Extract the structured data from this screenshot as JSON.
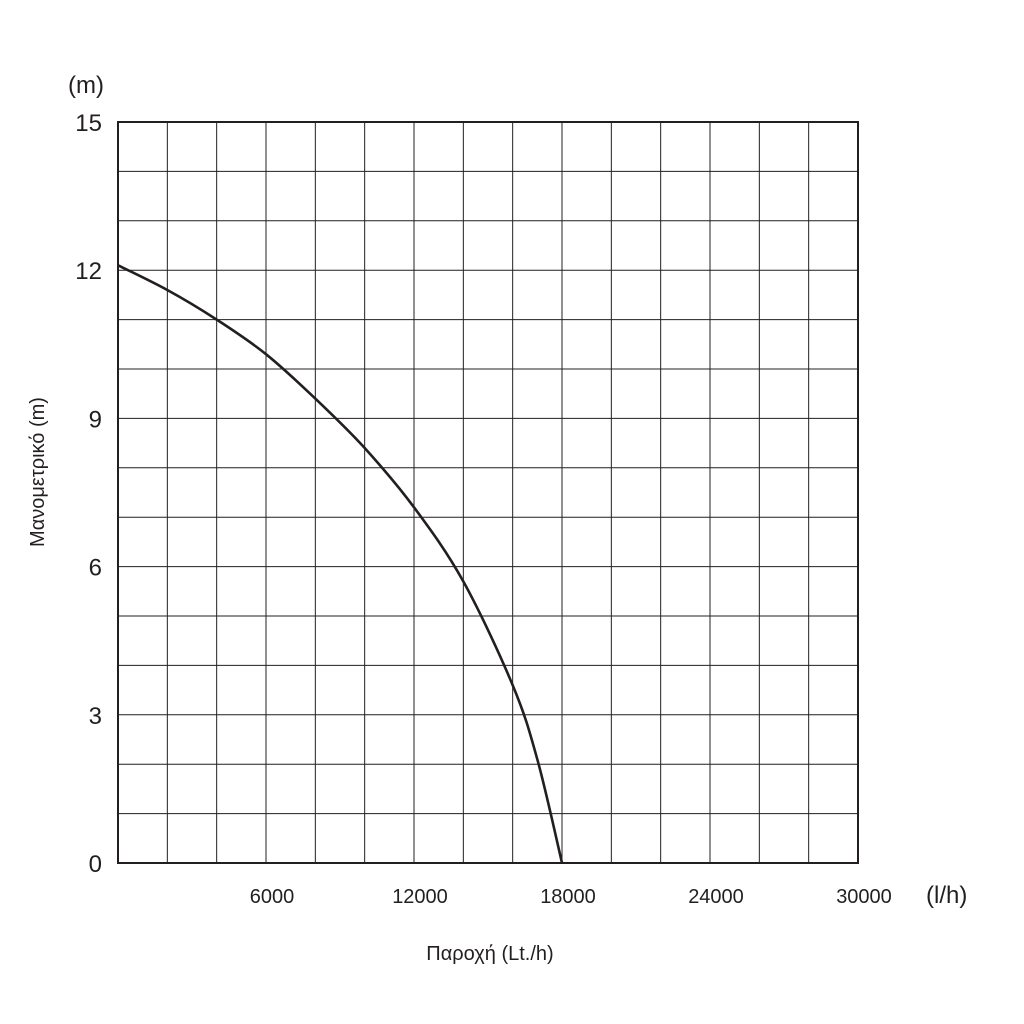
{
  "chart_data": {
    "type": "line",
    "title": "",
    "xlabel": "Παροχή (Lt./h)",
    "ylabel": "Μανομετρικό (m)",
    "x_unit": "(l/h)",
    "y_unit": "(m)",
    "xlim": [
      0,
      30000
    ],
    "ylim": [
      0,
      15
    ],
    "x_ticks": [
      6000,
      12000,
      18000,
      24000,
      30000
    ],
    "y_ticks": [
      0,
      3,
      6,
      9,
      12,
      15
    ],
    "x_tick_labels": [
      "6000",
      "12000",
      "18000",
      "24000",
      "30000"
    ],
    "y_tick_labels": [
      "0",
      "3",
      "6",
      "9",
      "12",
      "15"
    ],
    "grid": true,
    "grid_x_step": 2000,
    "grid_y_step": 1,
    "legend": "none",
    "series": [
      {
        "color": "#231f20",
        "x": [
          0,
          2000,
          4000,
          6000,
          8000,
          10000,
          12000,
          14000,
          16000,
          17000,
          18000
        ],
        "y": [
          12.1,
          11.6,
          11.0,
          10.3,
          9.4,
          8.4,
          7.2,
          5.7,
          3.6,
          2.1,
          0
        ]
      }
    ]
  }
}
